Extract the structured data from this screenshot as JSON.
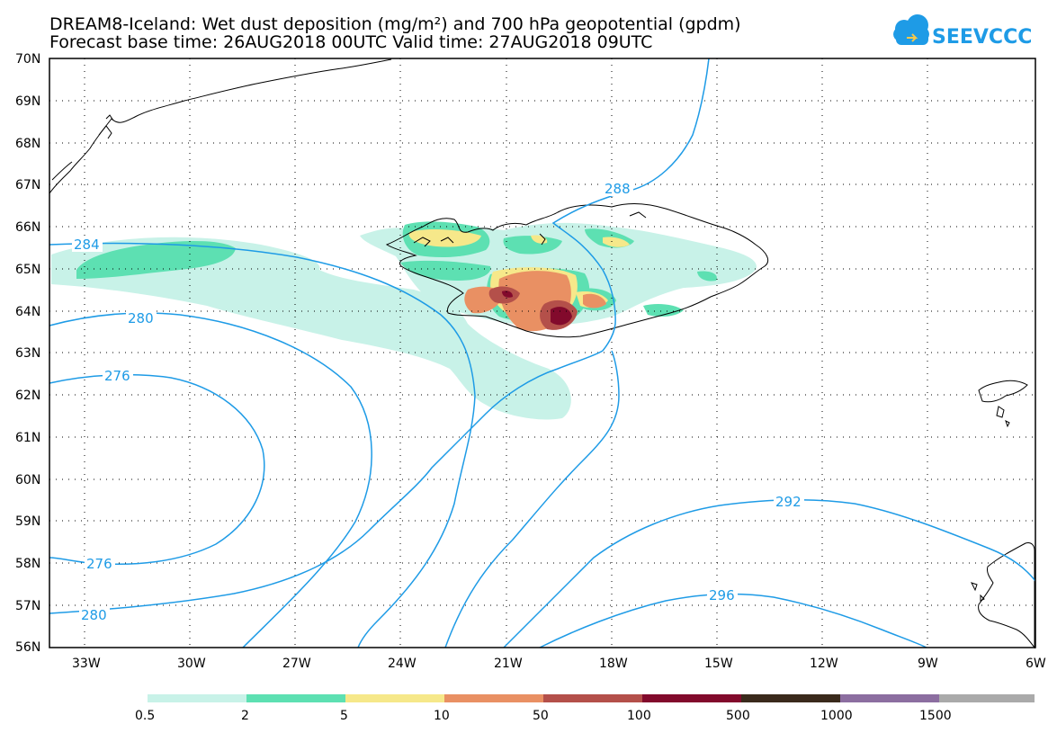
{
  "title": {
    "line1": "DREAM8-Iceland: Wet dust deposition (mg/m²) and 700 hPa geopotential (gpdm)",
    "line2": "Forecast base time: 26AUG2018 00UTC     Valid time: 27AUG2018 09UTC"
  },
  "logo": {
    "text": "SEEVCCC"
  },
  "map": {
    "lat_labels": [
      "70N",
      "69N",
      "68N",
      "67N",
      "66N",
      "65N",
      "64N",
      "63N",
      "62N",
      "61N",
      "60N",
      "59N",
      "58N",
      "57N",
      "56N"
    ],
    "lon_labels": [
      "33W",
      "30W",
      "27W",
      "24W",
      "21W",
      "18W",
      "15W",
      "12W",
      "9W",
      "6W"
    ]
  },
  "contours": {
    "color": "#1e9be6",
    "labels": [
      "284",
      "280",
      "276",
      "276",
      "280",
      "288",
      "292",
      "296"
    ]
  },
  "colorbar": {
    "tick_labels": [
      "0.5",
      "2",
      "5",
      "10",
      "50",
      "100",
      "500",
      "1000",
      "1500"
    ],
    "colors": [
      "#c8f2e8",
      "#5de0b2",
      "#f6e88a",
      "#e99063",
      "#b4504a",
      "#820a2c",
      "#3a2a1c",
      "#8c6ea0",
      "#aaaaaa"
    ]
  }
}
